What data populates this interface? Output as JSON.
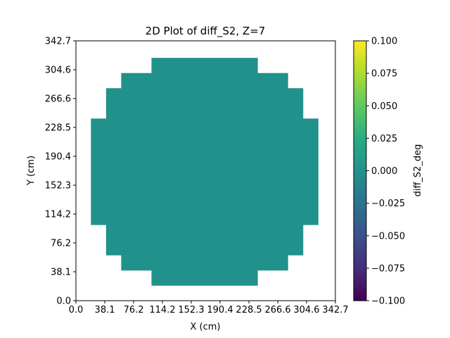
{
  "chart_data": {
    "type": "heatmap",
    "title": "2D Plot of diff_S2, Z=7",
    "xlabel": "X (cm)",
    "ylabel": "Y (cm)",
    "xlim": [
      0.0,
      342.7
    ],
    "ylim": [
      0.0,
      342.7
    ],
    "xticks": [
      0.0,
      38.1,
      76.2,
      114.2,
      152.3,
      190.4,
      228.5,
      266.6,
      304.6,
      342.7
    ],
    "xtick_labels": [
      "0.0",
      "38.1",
      "76.2",
      "114.2",
      "152.3",
      "190.4",
      "228.5",
      "266.6",
      "304.6",
      "342.7"
    ],
    "yticks": [
      0.0,
      38.1,
      76.2,
      114.2,
      152.3,
      190.4,
      228.5,
      266.6,
      304.6,
      342.7
    ],
    "ytick_labels": [
      "0.0",
      "38.1",
      "76.2",
      "114.2",
      "152.3",
      "190.4",
      "228.5",
      "266.6",
      "304.6",
      "342.7"
    ],
    "grid": false,
    "colormap": "viridis",
    "value": 0.0,
    "cell_color": "#21918c",
    "cells_by_row": [
      {
        "y": [
          20.0,
          40.0
        ],
        "x": [
          100.0,
          240.0
        ]
      },
      {
        "y": [
          40.0,
          60.0
        ],
        "x": [
          60.0,
          280.0
        ]
      },
      {
        "y": [
          60.0,
          100.0
        ],
        "x": [
          40.0,
          300.0
        ]
      },
      {
        "y": [
          100.0,
          240.0
        ],
        "x": [
          20.0,
          320.0
        ]
      },
      {
        "y": [
          240.0,
          280.0
        ],
        "x": [
          40.0,
          300.0
        ]
      },
      {
        "y": [
          280.0,
          300.0
        ],
        "x": [
          60.0,
          280.0
        ]
      },
      {
        "y": [
          300.0,
          320.0
        ],
        "x": [
          100.0,
          240.0
        ]
      }
    ],
    "colorbar": {
      "label": "diff_S2_deg",
      "range": [
        -0.1,
        0.1
      ],
      "ticks": [
        -0.1,
        -0.075,
        -0.05,
        -0.025,
        0.0,
        0.025,
        0.05,
        0.075,
        0.1
      ],
      "tick_labels": [
        "−0.100",
        "−0.075",
        "−0.050",
        "−0.025",
        "0.000",
        "0.025",
        "0.050",
        "0.075",
        "0.100"
      ]
    }
  }
}
